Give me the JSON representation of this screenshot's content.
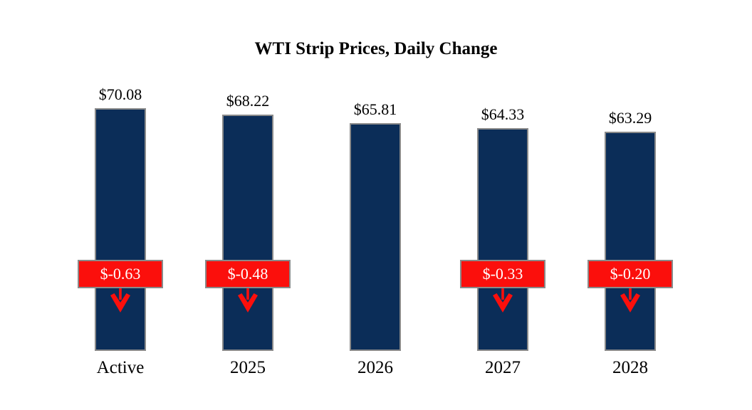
{
  "chart_data": {
    "type": "bar",
    "title": "WTI Strip Prices, Daily Change",
    "categories": [
      "Active",
      "2025",
      "2026",
      "2027",
      "2028"
    ],
    "values": [
      70.08,
      68.22,
      65.81,
      64.33,
      63.29
    ],
    "value_labels": [
      "$70.08",
      "$68.22",
      "$65.81",
      "$64.33",
      "$63.29"
    ],
    "changes": [
      -0.63,
      -0.48,
      null,
      -0.33,
      -0.2
    ],
    "change_labels": [
      "$-0.63",
      "$-0.48",
      null,
      "$-0.33",
      "$-0.20"
    ],
    "xlabel": "",
    "ylabel": "",
    "ylim": [
      0,
      80.7
    ],
    "grid": false,
    "legend": false,
    "axes_visible": false,
    "colors": {
      "bar_fill": "#0b2d58",
      "bar_border": "#8a8a8a",
      "badge_fill": "#fb0f0c",
      "badge_border": "#8a8a8a",
      "badge_text": "#ffffff",
      "arrow": "#fb0f0c",
      "label_text": "#000000",
      "title_text": "#000000"
    }
  }
}
